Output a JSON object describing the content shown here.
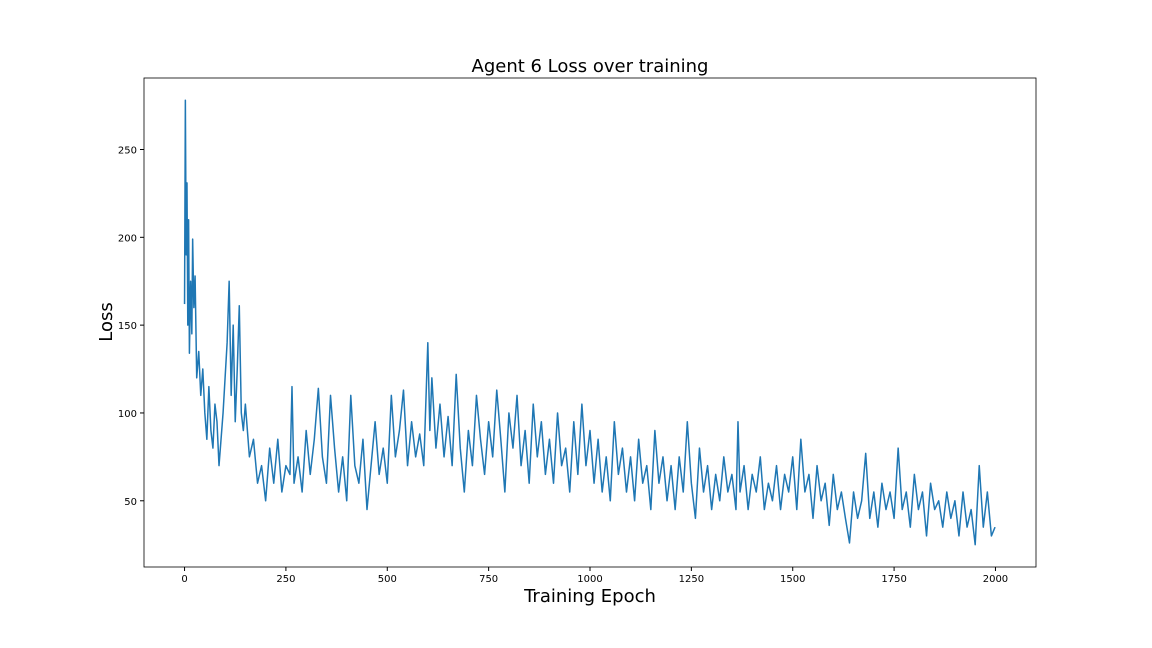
{
  "chart_data": {
    "type": "line",
    "title": "Agent 6 Loss over training",
    "x_label": "Training Epoch",
    "y_label": "Loss",
    "x": [
      0,
      2,
      4,
      6,
      8,
      10,
      12,
      15,
      18,
      20,
      23,
      26,
      30,
      35,
      40,
      45,
      50,
      55,
      60,
      65,
      70,
      75,
      80,
      85,
      90,
      95,
      100,
      105,
      110,
      115,
      120,
      125,
      130,
      135,
      140,
      145,
      150,
      160,
      170,
      180,
      190,
      200,
      210,
      220,
      230,
      240,
      250,
      260,
      265,
      270,
      280,
      290,
      300,
      310,
      320,
      330,
      340,
      350,
      360,
      370,
      380,
      390,
      400,
      410,
      420,
      430,
      440,
      450,
      460,
      470,
      480,
      490,
      500,
      510,
      520,
      530,
      540,
      550,
      560,
      570,
      580,
      590,
      600,
      605,
      610,
      620,
      630,
      640,
      650,
      660,
      670,
      680,
      690,
      700,
      710,
      720,
      730,
      740,
      750,
      760,
      770,
      780,
      790,
      800,
      810,
      820,
      830,
      840,
      850,
      860,
      870,
      880,
      890,
      900,
      910,
      920,
      930,
      940,
      950,
      960,
      970,
      980,
      990,
      1000,
      1010,
      1020,
      1030,
      1040,
      1050,
      1060,
      1070,
      1080,
      1090,
      1100,
      1110,
      1120,
      1130,
      1140,
      1150,
      1160,
      1170,
      1180,
      1190,
      1200,
      1210,
      1220,
      1230,
      1240,
      1250,
      1260,
      1270,
      1280,
      1290,
      1300,
      1310,
      1320,
      1330,
      1340,
      1350,
      1360,
      1365,
      1370,
      1380,
      1390,
      1400,
      1410,
      1420,
      1430,
      1440,
      1450,
      1460,
      1470,
      1480,
      1490,
      1500,
      1510,
      1520,
      1530,
      1540,
      1550,
      1560,
      1570,
      1580,
      1590,
      1600,
      1610,
      1620,
      1630,
      1640,
      1650,
      1660,
      1670,
      1680,
      1690,
      1700,
      1710,
      1720,
      1730,
      1740,
      1750,
      1760,
      1770,
      1780,
      1790,
      1800,
      1810,
      1820,
      1830,
      1840,
      1850,
      1860,
      1870,
      1880,
      1890,
      1900,
      1910,
      1920,
      1930,
      1940,
      1950,
      1960,
      1970,
      1980,
      1990,
      1999
    ],
    "series": [
      {
        "name": "Loss",
        "color": "#1f77b4",
        "values": [
          162,
          278,
          190,
          231,
          150,
          210,
          134,
          175,
          145,
          199,
          160,
          178,
          120,
          135,
          110,
          125,
          100,
          85,
          115,
          90,
          80,
          105,
          95,
          70,
          85,
          100,
          120,
          140,
          175,
          110,
          150,
          95,
          125,
          161,
          100,
          90,
          105,
          75,
          85,
          60,
          70,
          50,
          80,
          60,
          85,
          55,
          70,
          65,
          115,
          60,
          75,
          55,
          90,
          65,
          85,
          114,
          75,
          60,
          110,
          80,
          55,
          75,
          50,
          110,
          70,
          60,
          85,
          45,
          70,
          95,
          65,
          80,
          60,
          110,
          75,
          90,
          113,
          70,
          95,
          75,
          88,
          70,
          140,
          90,
          120,
          80,
          105,
          75,
          98,
          70,
          122,
          80,
          55,
          90,
          70,
          110,
          85,
          65,
          95,
          75,
          113,
          85,
          55,
          100,
          80,
          110,
          70,
          90,
          60,
          105,
          75,
          95,
          65,
          85,
          60,
          100,
          70,
          80,
          55,
          95,
          65,
          105,
          70,
          90,
          60,
          85,
          55,
          75,
          50,
          95,
          65,
          80,
          55,
          75,
          50,
          85,
          60,
          70,
          45,
          90,
          60,
          75,
          50,
          70,
          45,
          75,
          55,
          95,
          60,
          40,
          80,
          55,
          70,
          45,
          65,
          50,
          75,
          55,
          65,
          45,
          95,
          55,
          70,
          45,
          65,
          55,
          75,
          45,
          60,
          50,
          70,
          45,
          65,
          55,
          75,
          45,
          85,
          55,
          65,
          40,
          70,
          50,
          60,
          36,
          65,
          45,
          55,
          40,
          26,
          55,
          40,
          50,
          77,
          40,
          55,
          35,
          60,
          45,
          55,
          40,
          80,
          45,
          55,
          35,
          65,
          45,
          55,
          30,
          60,
          45,
          50,
          35,
          55,
          40,
          50,
          30,
          55,
          35,
          45,
          25,
          70,
          35,
          55,
          30,
          35
        ]
      }
    ],
    "xlim": [
      -100,
      2100
    ],
    "ylim": [
      12.3,
      290.7
    ],
    "xticks": [
      0,
      250,
      500,
      750,
      1000,
      1250,
      1500,
      1750,
      2000
    ],
    "yticks": [
      50,
      100,
      150,
      200,
      250
    ]
  }
}
